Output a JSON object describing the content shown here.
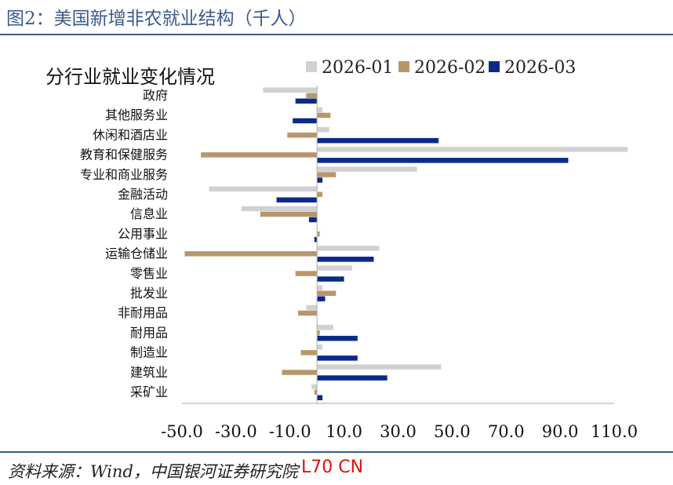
{
  "figure_title": "图2：美国新增非农就业结构（千人）",
  "source": "资料来源：Wind，中国银河证券研究院",
  "watermark": "L70 CN",
  "colors": {
    "accent": "#3b5a8c",
    "series": [
      "#d1d1d3",
      "#b8966a",
      "#0a2a8a"
    ]
  },
  "chart_data": {
    "type": "bar",
    "orientation": "horizontal",
    "title": "分行业就业变化情况",
    "categories": [
      "政府",
      "其他服务业",
      "休闲和酒店业",
      "教育和保健服务",
      "专业和商业服务",
      "金融活动",
      "信息业",
      "公用事业",
      "运输仓储业",
      "零售业",
      "批发业",
      "非耐用品",
      "耐用品",
      "制造业",
      "建筑业",
      "采矿业"
    ],
    "series": [
      {
        "name": "2026-01",
        "values": [
          -20.0,
          2.0,
          4.5,
          115.0,
          37.0,
          -40.0,
          -28.0,
          0.0,
          23.0,
          13.0,
          2.0,
          -4.0,
          6.0,
          2.0,
          46.0,
          -2.0
        ]
      },
      {
        "name": "2026-02",
        "values": [
          -4.0,
          5.0,
          -11.0,
          -43.0,
          7.0,
          2.0,
          -21.0,
          1.0,
          -49.0,
          -8.0,
          7.0,
          -7.0,
          1.0,
          -6.0,
          -13.0,
          -1.0
        ]
      },
      {
        "name": "2026-03",
        "values": [
          -8.0,
          -9.0,
          45.0,
          93.0,
          2.0,
          -15.0,
          -3.0,
          -1.0,
          21.0,
          10.0,
          3.0,
          0.0,
          15.0,
          15.0,
          26.0,
          2.0
        ]
      }
    ],
    "xlim": [
      -50.0,
      110.0
    ],
    "xticks": [
      "-50.0",
      "-30.0",
      "-10.0",
      "10.0",
      "30.0",
      "50.0",
      "70.0",
      "90.0",
      "110.0"
    ],
    "legend_position": "top-right",
    "grid": false
  }
}
